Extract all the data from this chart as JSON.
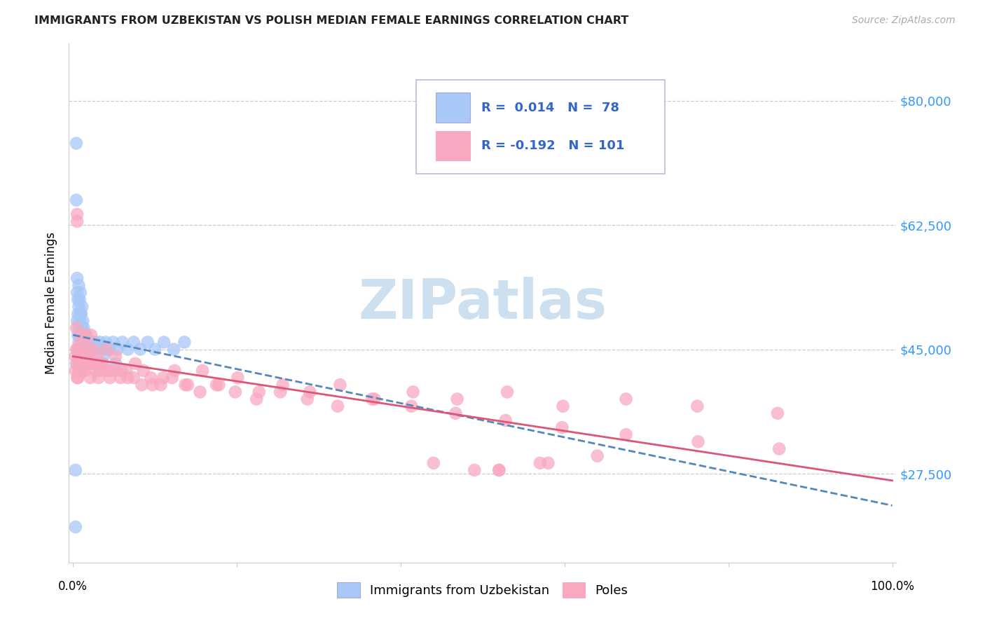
{
  "title": "IMMIGRANTS FROM UZBEKISTAN VS POLISH MEDIAN FEMALE EARNINGS CORRELATION CHART",
  "source": "Source: ZipAtlas.com",
  "ylabel": "Median Female Earnings",
  "ytick_labels": [
    "$27,500",
    "$45,000",
    "$62,500",
    "$80,000"
  ],
  "ytick_values": [
    27500,
    45000,
    62500,
    80000
  ],
  "ymin": 15000,
  "ymax": 88000,
  "xmin": -0.005,
  "xmax": 1.005,
  "uzbek_color": "#a8c8f8",
  "poles_color": "#f8a8c0",
  "uzbek_line_color": "#5588bb",
  "poles_line_color": "#dd5577",
  "watermark_color": "#cce0f0",
  "uzbek_x": [
    0.003,
    0.003,
    0.004,
    0.004,
    0.005,
    0.005,
    0.005,
    0.006,
    0.006,
    0.006,
    0.007,
    0.007,
    0.007,
    0.007,
    0.008,
    0.008,
    0.008,
    0.009,
    0.009,
    0.009,
    0.009,
    0.01,
    0.01,
    0.01,
    0.01,
    0.011,
    0.011,
    0.011,
    0.012,
    0.012,
    0.012,
    0.013,
    0.013,
    0.013,
    0.014,
    0.014,
    0.015,
    0.015,
    0.016,
    0.016,
    0.017,
    0.018,
    0.019,
    0.02,
    0.022,
    0.024,
    0.026,
    0.028,
    0.03,
    0.033,
    0.036,
    0.04,
    0.044,
    0.049,
    0.054,
    0.06,
    0.067,
    0.074,
    0.082,
    0.091,
    0.1,
    0.111,
    0.123,
    0.136,
    0.004,
    0.006,
    0.008,
    0.01,
    0.012,
    0.014,
    0.016,
    0.019,
    0.022,
    0.026,
    0.031,
    0.037,
    0.044,
    0.052
  ],
  "uzbek_y": [
    20000,
    28000,
    74000,
    66000,
    55000,
    53000,
    49000,
    52000,
    50000,
    47000,
    54000,
    51000,
    48000,
    46000,
    52000,
    49000,
    47000,
    53000,
    50000,
    47000,
    45000,
    50000,
    48000,
    45000,
    43000,
    51000,
    48000,
    45000,
    49000,
    46000,
    44000,
    48000,
    45000,
    43000,
    47000,
    44000,
    46000,
    44000,
    47000,
    44000,
    45000,
    46000,
    45000,
    46000,
    45000,
    46000,
    45000,
    46000,
    45000,
    46000,
    45000,
    46000,
    45000,
    46000,
    45000,
    46000,
    45000,
    46000,
    45000,
    46000,
    45000,
    46000,
    45000,
    46000,
    43000,
    45000,
    43000,
    44000,
    43000,
    44000,
    44000,
    45000,
    44000,
    45000,
    43000,
    44000,
    45000,
    43000
  ],
  "poles_x": [
    0.003,
    0.004,
    0.005,
    0.006,
    0.007,
    0.008,
    0.009,
    0.01,
    0.011,
    0.012,
    0.013,
    0.014,
    0.015,
    0.016,
    0.018,
    0.02,
    0.022,
    0.025,
    0.028,
    0.032,
    0.036,
    0.041,
    0.046,
    0.052,
    0.059,
    0.067,
    0.076,
    0.086,
    0.097,
    0.11,
    0.124,
    0.14,
    0.158,
    0.178,
    0.201,
    0.227,
    0.256,
    0.289,
    0.326,
    0.368,
    0.415,
    0.469,
    0.53,
    0.598,
    0.675,
    0.762,
    0.86,
    0.003,
    0.004,
    0.005,
    0.006,
    0.007,
    0.008,
    0.009,
    0.01,
    0.011,
    0.012,
    0.014,
    0.016,
    0.018,
    0.021,
    0.024,
    0.027,
    0.031,
    0.035,
    0.04,
    0.045,
    0.051,
    0.058,
    0.065,
    0.074,
    0.084,
    0.095,
    0.107,
    0.121,
    0.137,
    0.155,
    0.175,
    0.198,
    0.224,
    0.253,
    0.286,
    0.323,
    0.365,
    0.413,
    0.467,
    0.528,
    0.597,
    0.675,
    0.763,
    0.862,
    0.44,
    0.52,
    0.58,
    0.005,
    0.49,
    0.57,
    0.64,
    0.005,
    0.52
  ],
  "poles_y": [
    44000,
    48000,
    41000,
    45000,
    42000,
    44000,
    46000,
    47000,
    44000,
    42000,
    46000,
    44000,
    47000,
    43000,
    45000,
    43000,
    47000,
    45000,
    44000,
    42000,
    43000,
    45000,
    42000,
    44000,
    42000,
    41000,
    43000,
    42000,
    40000,
    41000,
    42000,
    40000,
    42000,
    40000,
    41000,
    39000,
    40000,
    39000,
    40000,
    38000,
    39000,
    38000,
    39000,
    37000,
    38000,
    37000,
    36000,
    42000,
    45000,
    43000,
    41000,
    44000,
    42000,
    43000,
    45000,
    44000,
    43000,
    42000,
    44000,
    43000,
    41000,
    43000,
    42000,
    41000,
    43000,
    42000,
    41000,
    42000,
    41000,
    42000,
    41000,
    40000,
    41000,
    40000,
    41000,
    40000,
    39000,
    40000,
    39000,
    38000,
    39000,
    38000,
    37000,
    38000,
    37000,
    36000,
    35000,
    34000,
    33000,
    32000,
    31000,
    29000,
    28000,
    29000,
    64000,
    28000,
    29000,
    30000,
    63000,
    28000
  ]
}
